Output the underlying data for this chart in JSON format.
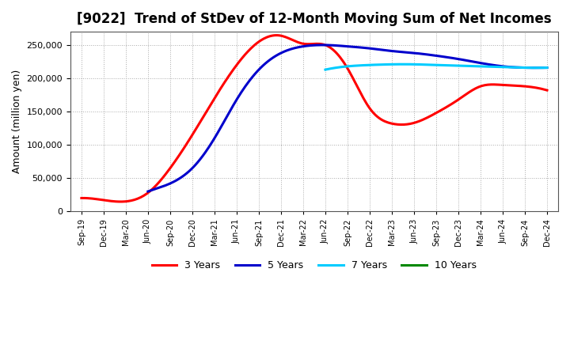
{
  "title": "[9022]  Trend of StDev of 12-Month Moving Sum of Net Incomes",
  "ylabel": "Amount (million yen)",
  "x_labels": [
    "Sep-19",
    "Dec-19",
    "Mar-20",
    "Jun-20",
    "Sep-20",
    "Dec-20",
    "Mar-21",
    "Jun-21",
    "Sep-21",
    "Dec-21",
    "Mar-22",
    "Jun-22",
    "Sep-22",
    "Dec-22",
    "Mar-23",
    "Jun-23",
    "Sep-23",
    "Dec-23",
    "Mar-24",
    "Jun-24",
    "Sep-24",
    "Dec-24"
  ],
  "series_3yr": {
    "color": "#FF0000",
    "indices": [
      0,
      1,
      2,
      3,
      4,
      5,
      6,
      7,
      8,
      9,
      10,
      11,
      12,
      13,
      14,
      15,
      16,
      17,
      18,
      19,
      20,
      21
    ],
    "values": [
      20000,
      17000,
      15000,
      28000,
      65000,
      115000,
      170000,
      220000,
      255000,
      264000,
      252000,
      250000,
      215000,
      155000,
      132000,
      133000,
      148000,
      168000,
      188000,
      190000,
      188000,
      182000
    ]
  },
  "series_5yr": {
    "color": "#0000CC",
    "indices": [
      3,
      4,
      5,
      6,
      7,
      8,
      9,
      10,
      11,
      12,
      13,
      14,
      15,
      16,
      17,
      18,
      19,
      20,
      21
    ],
    "values": [
      30000,
      42000,
      65000,
      110000,
      168000,
      213000,
      238000,
      248000,
      250000,
      248000,
      245000,
      241000,
      238000,
      234000,
      229000,
      223000,
      218000,
      216000,
      216000
    ]
  },
  "series_7yr": {
    "color": "#00CCFF",
    "indices": [
      11,
      12,
      13,
      14,
      15,
      16,
      17,
      18,
      19,
      20,
      21
    ],
    "values": [
      213000,
      218000,
      220000,
      221000,
      221000,
      220000,
      219000,
      218000,
      217000,
      216000,
      216000
    ]
  },
  "series_10yr": {
    "color": "#008800",
    "indices": [],
    "values": []
  },
  "ylim": [
    0,
    270000
  ],
  "yticks": [
    0,
    50000,
    100000,
    150000,
    200000,
    250000
  ],
  "background_color": "#FFFFFF",
  "grid_color": "#AAAAAA",
  "title_fontsize": 12,
  "label_fontsize": 9
}
